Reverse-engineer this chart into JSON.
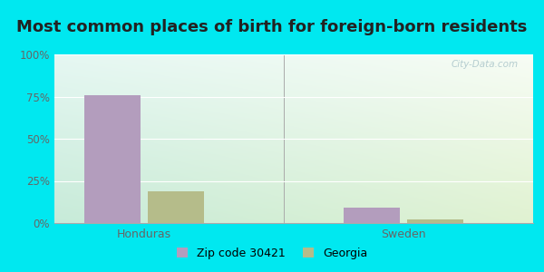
{
  "title": "Most common places of birth for foreign-born residents",
  "categories": [
    "Honduras",
    "Sweden"
  ],
  "zip_values": [
    76,
    9
  ],
  "georgia_values": [
    19,
    2
  ],
  "zip_color": "#b39dbd",
  "georgia_color": "#b5bc8a",
  "zip_label": "Zip code 30421",
  "georgia_label": "Georgia",
  "ylim": [
    0,
    100
  ],
  "yticks": [
    0,
    25,
    50,
    75,
    100
  ],
  "yticklabels": [
    "0%",
    "25%",
    "50%",
    "75%",
    "100%"
  ],
  "bg_outer": "#00e8f0",
  "title_fontsize": 13,
  "watermark": "City-Data.com",
  "bar_width": 0.28,
  "group_positions": [
    0.35,
    1.65
  ],
  "xlim": [
    -0.1,
    2.3
  ]
}
